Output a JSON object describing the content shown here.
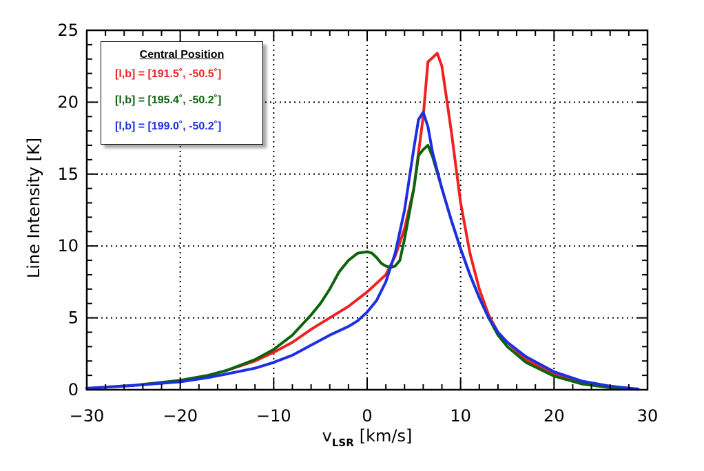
{
  "colors": {
    "red": "#ee2222",
    "green": "#0b630b",
    "blue": "#1c2fe3"
  },
  "chart_data": {
    "type": "line",
    "title": "",
    "xlabel_main": "v",
    "xlabel_sub": "LSR",
    "xlabel_units": "[km/s]",
    "ylabel": "Line Intensity [K]",
    "xlim": [
      -30,
      30
    ],
    "ylim": [
      0,
      25
    ],
    "xticks": [
      -30,
      -20,
      -10,
      0,
      10,
      20,
      30
    ],
    "xtick_labels": [
      "−30",
      "−20",
      "−10",
      "0",
      "10",
      "20",
      "30"
    ],
    "yticks": [
      0,
      5,
      10,
      15,
      20,
      25
    ],
    "ytick_labels": [
      "0",
      "5",
      "10",
      "15",
      "20",
      "25"
    ],
    "grid": true,
    "legend": {
      "title": "Central Position",
      "placement": "top-left",
      "entries": [
        "[l,b] = [191.5˚, -50.5˚]",
        "[l,b] = [195.4˚, -50.2˚]",
        "[l,b] = [199.0˚, -50.2˚]"
      ]
    },
    "series": [
      {
        "name": "[l,b] = [191.5˚, -50.5˚]",
        "color": "#ee2222",
        "x": [
          -30,
          -25,
          -20,
          -17,
          -15,
          -12,
          -10,
          -8,
          -6,
          -4,
          -2,
          0,
          2,
          3,
          4,
          5,
          6,
          6.5,
          7,
          7.5,
          8,
          9,
          10,
          11,
          12,
          13,
          14,
          15,
          17,
          20,
          23,
          26,
          29
        ],
        "y": [
          0.1,
          0.3,
          0.65,
          1.0,
          1.35,
          2.0,
          2.6,
          3.3,
          4.2,
          5.0,
          5.8,
          6.8,
          8.0,
          9.3,
          11.2,
          14.0,
          19.0,
          22.8,
          23.1,
          23.4,
          22.5,
          18.0,
          13.0,
          9.5,
          7.0,
          5.2,
          4.0,
          3.3,
          2.1,
          1.1,
          0.5,
          0.2,
          0.05
        ]
      },
      {
        "name": "[l,b] = [195.4˚, -50.2˚]",
        "color": "#0b630b",
        "x": [
          -30,
          -25,
          -20,
          -17,
          -15,
          -12,
          -10,
          -8,
          -7,
          -6,
          -5,
          -4,
          -3,
          -2,
          -1,
          0,
          0.5,
          1,
          1.5,
          2,
          2.5,
          3,
          3.5,
          4,
          5,
          5.5,
          6,
          6.5,
          7,
          8,
          9,
          10,
          11,
          12,
          13,
          14,
          15,
          17,
          20,
          23,
          26,
          29
        ],
        "y": [
          0.1,
          0.3,
          0.65,
          1.0,
          1.35,
          2.1,
          2.8,
          3.8,
          4.5,
          5.2,
          6.0,
          7.0,
          8.2,
          9.0,
          9.5,
          9.6,
          9.5,
          9.2,
          8.8,
          8.6,
          8.5,
          8.6,
          9.0,
          10.5,
          14.0,
          16.3,
          16.7,
          17.0,
          16.2,
          14.0,
          11.8,
          9.8,
          8.0,
          6.4,
          5.0,
          3.8,
          3.0,
          1.9,
          0.95,
          0.4,
          0.15,
          0.03
        ]
      },
      {
        "name": "[l,b] = [199.0˚, -50.2˚]",
        "color": "#1c2fe3",
        "x": [
          -30,
          -25,
          -20,
          -17,
          -15,
          -12,
          -10,
          -8,
          -6,
          -4,
          -2,
          -1,
          0,
          1,
          2,
          3,
          4,
          5,
          5.5,
          6,
          6.5,
          7,
          8,
          9,
          10,
          11,
          12,
          13,
          14,
          15,
          17,
          20,
          23,
          26,
          29
        ],
        "y": [
          0.1,
          0.3,
          0.55,
          0.85,
          1.1,
          1.5,
          1.9,
          2.4,
          3.1,
          3.8,
          4.4,
          4.8,
          5.4,
          6.2,
          7.5,
          9.5,
          12.5,
          16.8,
          18.8,
          19.3,
          18.3,
          16.5,
          14.0,
          11.8,
          9.8,
          8.0,
          6.4,
          5.0,
          4.0,
          3.3,
          2.3,
          1.25,
          0.6,
          0.25,
          0.05
        ]
      }
    ]
  }
}
